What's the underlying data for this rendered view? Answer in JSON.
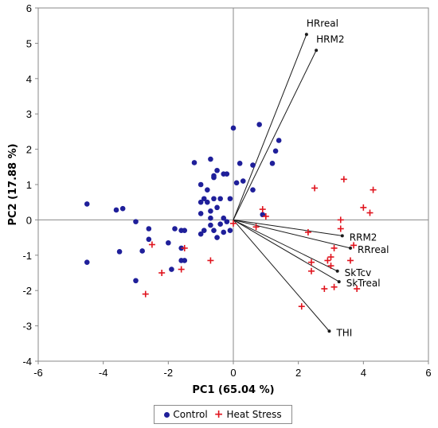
{
  "chart_data": {
    "type": "scatter",
    "xlabel": "PC1 (65.04 %)",
    "ylabel": "PC2 (17.88 %)",
    "xlim": [
      -6,
      6
    ],
    "ylim": [
      -4,
      6
    ],
    "xticks": [
      -6,
      -4,
      -2,
      0,
      2,
      4,
      6
    ],
    "yticks": [
      -4,
      -3,
      -2,
      -1,
      0,
      1,
      2,
      3,
      4,
      5,
      6
    ],
    "grid": false,
    "legend_position": "bottom",
    "colors": {
      "control": "#1f1f9a",
      "heat_stress": "#e0141e",
      "vector": "#1a1a1a"
    },
    "series": [
      {
        "name": "Control",
        "marker": "dot",
        "points": [
          [
            -4.5,
            0.45
          ],
          [
            -4.5,
            -1.2
          ],
          [
            -3.6,
            0.28
          ],
          [
            -3.4,
            0.32
          ],
          [
            -3.5,
            -0.9
          ],
          [
            -3.0,
            -0.05
          ],
          [
            -3.0,
            -1.72
          ],
          [
            -2.8,
            -0.88
          ],
          [
            -2.6,
            -0.25
          ],
          [
            -2.6,
            -0.55
          ],
          [
            -2.0,
            -0.65
          ],
          [
            -1.9,
            -1.4
          ],
          [
            -1.8,
            -0.25
          ],
          [
            -1.6,
            -0.3
          ],
          [
            -1.6,
            -0.8
          ],
          [
            -1.6,
            -1.15
          ],
          [
            -1.5,
            -1.15
          ],
          [
            -1.5,
            -0.3
          ],
          [
            -1.2,
            1.62
          ],
          [
            -1.0,
            1.0
          ],
          [
            -1.0,
            0.5
          ],
          [
            -1.0,
            0.18
          ],
          [
            -0.9,
            0.6
          ],
          [
            -0.8,
            0.85
          ],
          [
            -0.7,
            1.72
          ],
          [
            -0.7,
            0.25
          ],
          [
            -0.7,
            0.05
          ],
          [
            -0.7,
            -0.15
          ],
          [
            -0.6,
            0.6
          ],
          [
            -0.6,
            -0.3
          ],
          [
            -0.5,
            -0.5
          ],
          [
            -0.5,
            0.35
          ],
          [
            -0.4,
            0.6
          ],
          [
            -0.3,
            1.3
          ],
          [
            -0.3,
            0.05
          ],
          [
            -0.3,
            -0.35
          ],
          [
            -0.2,
            1.3
          ],
          [
            -0.2,
            -0.05
          ],
          [
            -0.1,
            0.6
          ],
          [
            -0.1,
            -0.3
          ],
          [
            -0.6,
            1.2
          ],
          [
            -0.6,
            1.25
          ],
          [
            -0.5,
            1.4
          ],
          [
            -0.8,
            0.5
          ],
          [
            -0.9,
            -0.3
          ],
          [
            -1.0,
            -0.4
          ],
          [
            -0.4,
            -0.12
          ],
          [
            0.0,
            2.6
          ],
          [
            0.1,
            1.05
          ],
          [
            0.2,
            1.6
          ],
          [
            0.3,
            1.1
          ],
          [
            0.6,
            1.55
          ],
          [
            0.6,
            0.85
          ],
          [
            0.8,
            2.7
          ],
          [
            0.9,
            0.15
          ],
          [
            1.2,
            1.6
          ],
          [
            1.3,
            1.95
          ],
          [
            1.4,
            2.25
          ]
        ]
      },
      {
        "name": "Heat Stress",
        "marker": "plus",
        "points": [
          [
            -2.7,
            -2.1
          ],
          [
            -2.5,
            -0.7
          ],
          [
            -2.2,
            -1.5
          ],
          [
            -1.6,
            -1.4
          ],
          [
            -1.5,
            -0.8
          ],
          [
            -0.7,
            -1.15
          ],
          [
            0.0,
            -0.1
          ],
          [
            0.7,
            -0.2
          ],
          [
            0.9,
            0.3
          ],
          [
            1.0,
            0.1
          ],
          [
            2.1,
            -2.45
          ],
          [
            2.3,
            -0.35
          ],
          [
            2.4,
            -1.2
          ],
          [
            2.4,
            -1.45
          ],
          [
            2.5,
            0.9
          ],
          [
            2.8,
            -1.95
          ],
          [
            2.9,
            -1.15
          ],
          [
            3.0,
            -1.3
          ],
          [
            3.0,
            -1.05
          ],
          [
            3.1,
            -0.8
          ],
          [
            3.1,
            -1.9
          ],
          [
            3.3,
            -0.25
          ],
          [
            3.3,
            0.0
          ],
          [
            3.4,
            1.15
          ],
          [
            3.6,
            -1.15
          ],
          [
            3.7,
            -0.72
          ],
          [
            3.8,
            -1.95
          ],
          [
            4.0,
            0.35
          ],
          [
            4.2,
            0.2
          ],
          [
            4.3,
            0.85
          ]
        ]
      }
    ],
    "vectors": [
      {
        "name": "HRreal",
        "x": 2.25,
        "y": 5.25
      },
      {
        "name": "HRM2",
        "x": 2.55,
        "y": 4.8
      },
      {
        "name": "RRM2",
        "x": 3.35,
        "y": -0.45
      },
      {
        "name": "RRreal",
        "x": 3.6,
        "y": -0.8
      },
      {
        "name": "SkTcv",
        "x": 3.2,
        "y": -1.45
      },
      {
        "name": "SkTreal",
        "x": 3.25,
        "y": -1.75
      },
      {
        "name": "THI",
        "x": 2.95,
        "y": -3.15
      }
    ]
  },
  "legend": {
    "control_label": "Control",
    "heat_stress_label": "Heat Stress"
  }
}
